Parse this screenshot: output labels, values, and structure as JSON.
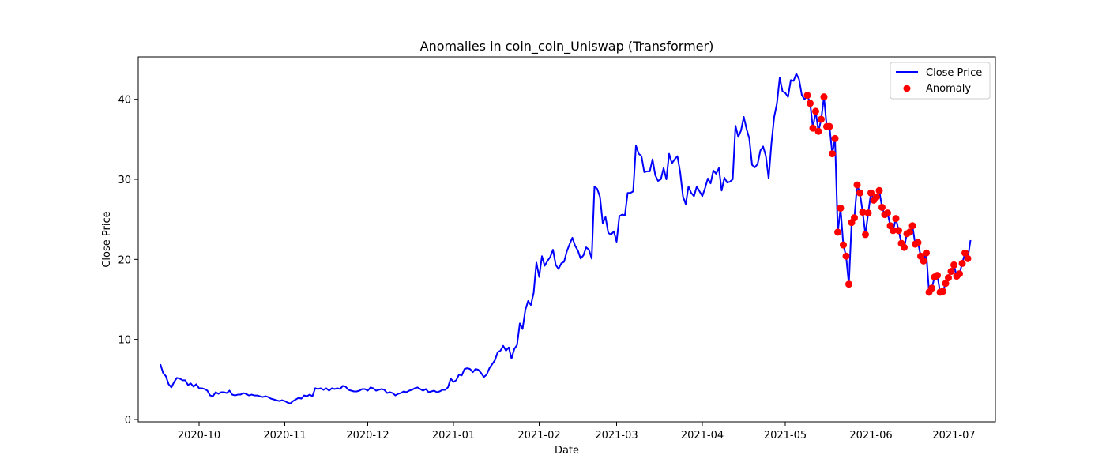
{
  "chart_data": {
    "type": "line",
    "title": "Anomalies in coin_coin_Uniswap (Transformer)",
    "xlabel": "Date",
    "ylabel": "Close Price",
    "x_axis_type": "date",
    "xlim": [
      "2020-09-09",
      "2021-07-16"
    ],
    "ylim": [
      -0.3,
      45.3
    ],
    "x_tick_labels": [
      "2020-10",
      "2020-11",
      "2020-12",
      "2021-01",
      "2021-02",
      "2021-03",
      "2021-04",
      "2021-05",
      "2021-06",
      "2021-07"
    ],
    "x_tick_dates": [
      "2020-10-01",
      "2020-11-01",
      "2020-12-01",
      "2021-01-01",
      "2021-02-01",
      "2021-03-01",
      "2021-04-01",
      "2021-05-01",
      "2021-06-01",
      "2021-07-01"
    ],
    "y_ticks": [
      0,
      10,
      20,
      30,
      40
    ],
    "y_tick_labels": [
      "0",
      "10",
      "20",
      "30",
      "40"
    ],
    "grid": false,
    "legend_position": "top-right",
    "series": [
      {
        "name": "Close Price",
        "kind": "line",
        "color": "#0000ff",
        "start_date": "2020-09-17",
        "values": [
          6.9,
          5.8,
          5.4,
          4.4,
          4.0,
          4.7,
          5.2,
          5.1,
          4.9,
          4.9,
          4.3,
          4.5,
          4.1,
          4.4,
          3.9,
          3.9,
          3.8,
          3.6,
          3.0,
          2.9,
          3.4,
          3.2,
          3.4,
          3.4,
          3.3,
          3.6,
          3.1,
          3.0,
          3.1,
          3.1,
          3.3,
          3.2,
          3.0,
          3.1,
          3.0,
          3.0,
          2.9,
          2.8,
          2.9,
          2.8,
          2.6,
          2.5,
          2.4,
          2.3,
          2.4,
          2.3,
          2.1,
          2.0,
          2.3,
          2.5,
          2.7,
          2.6,
          3.0,
          2.9,
          3.1,
          2.9,
          3.9,
          3.8,
          3.9,
          3.7,
          3.9,
          3.6,
          3.9,
          3.8,
          3.9,
          3.8,
          4.2,
          4.1,
          3.7,
          3.6,
          3.5,
          3.5,
          3.6,
          3.8,
          3.8,
          3.6,
          4.0,
          3.9,
          3.6,
          3.7,
          3.8,
          3.7,
          3.3,
          3.4,
          3.3,
          3.0,
          3.2,
          3.3,
          3.5,
          3.4,
          3.6,
          3.7,
          3.9,
          4.0,
          3.8,
          3.6,
          3.8,
          3.4,
          3.5,
          3.6,
          3.4,
          3.5,
          3.7,
          3.7,
          4.0,
          5.1,
          4.7,
          4.9,
          5.6,
          5.5,
          6.3,
          6.4,
          6.3,
          5.9,
          6.3,
          6.2,
          5.8,
          5.3,
          5.6,
          6.4,
          6.9,
          7.4,
          8.4,
          8.6,
          9.2,
          8.6,
          9.0,
          7.6,
          8.8,
          9.3,
          12.0,
          11.3,
          13.7,
          14.8,
          14.3,
          15.8,
          19.6,
          17.8,
          20.4,
          19.2,
          19.8,
          20.3,
          21.2,
          19.3,
          18.8,
          19.5,
          19.7,
          21.0,
          21.9,
          22.7,
          21.7,
          21.1,
          20.1,
          20.5,
          21.5,
          21.2,
          20.1,
          29.1,
          28.8,
          27.8,
          24.5,
          25.3,
          23.3,
          23.1,
          23.5,
          22.2,
          25.4,
          25.6,
          25.5,
          28.3,
          28.3,
          28.5,
          34.2,
          33.2,
          32.9,
          30.9,
          31.0,
          31.0,
          32.5,
          30.5,
          29.8,
          30.0,
          31.4,
          30.0,
          33.2,
          32.0,
          32.5,
          32.9,
          30.9,
          27.9,
          26.9,
          29.1,
          28.3,
          27.9,
          29.1,
          28.5,
          27.9,
          28.9,
          30.1,
          29.5,
          31.1,
          30.7,
          31.4,
          28.6,
          30.2,
          29.6,
          29.7,
          30.0,
          36.7,
          35.3,
          36.1,
          37.8,
          36.3,
          35.1,
          31.8,
          31.5,
          31.9,
          33.6,
          34.1,
          32.9,
          30.1,
          34.5,
          37.8,
          39.5,
          42.7,
          41.0,
          40.8,
          40.3,
          42.4,
          42.3,
          43.2,
          42.5,
          40.5,
          40.0,
          40.5,
          39.5,
          36.4,
          38.5,
          36.0,
          37.5,
          40.3,
          36.6,
          36.6,
          33.2,
          35.1,
          23.4,
          26.4,
          21.8,
          20.4,
          16.9,
          24.6,
          25.2,
          29.3,
          28.3,
          25.9,
          23.1,
          25.8,
          28.3,
          27.4,
          27.8,
          28.6,
          26.5,
          25.6,
          25.8,
          24.2,
          23.6,
          25.1,
          23.6,
          22.0,
          21.5,
          23.2,
          23.4,
          24.2,
          21.9,
          22.1,
          20.4,
          19.8,
          20.8,
          15.9,
          16.4,
          17.8,
          18.0,
          15.9,
          16.0,
          17.0,
          17.7,
          18.5,
          19.3,
          17.9,
          18.2,
          19.5,
          20.8,
          20.1,
          22.4
        ]
      },
      {
        "name": "Anomaly",
        "kind": "scatter",
        "color": "#ff0000",
        "points": [
          [
            "2021-05-09",
            40.5
          ],
          [
            "2021-05-10",
            39.5
          ],
          [
            "2021-05-11",
            36.4
          ],
          [
            "2021-05-12",
            38.5
          ],
          [
            "2021-05-13",
            36.0
          ],
          [
            "2021-05-14",
            37.5
          ],
          [
            "2021-05-15",
            40.3
          ],
          [
            "2021-05-16",
            36.6
          ],
          [
            "2021-05-17",
            36.6
          ],
          [
            "2021-05-18",
            33.2
          ],
          [
            "2021-05-19",
            35.1
          ],
          [
            "2021-05-20",
            23.4
          ],
          [
            "2021-05-21",
            26.4
          ],
          [
            "2021-05-22",
            21.8
          ],
          [
            "2021-05-23",
            20.4
          ],
          [
            "2021-05-24",
            16.9
          ],
          [
            "2021-05-25",
            24.6
          ],
          [
            "2021-05-26",
            25.2
          ],
          [
            "2021-05-27",
            29.3
          ],
          [
            "2021-05-28",
            28.3
          ],
          [
            "2021-05-29",
            25.9
          ],
          [
            "2021-05-30",
            23.1
          ],
          [
            "2021-05-31",
            25.8
          ],
          [
            "2021-06-01",
            28.3
          ],
          [
            "2021-06-02",
            27.4
          ],
          [
            "2021-06-03",
            27.8
          ],
          [
            "2021-06-04",
            28.6
          ],
          [
            "2021-06-05",
            26.5
          ],
          [
            "2021-06-06",
            25.6
          ],
          [
            "2021-06-07",
            25.8
          ],
          [
            "2021-06-08",
            24.2
          ],
          [
            "2021-06-09",
            23.6
          ],
          [
            "2021-06-10",
            25.1
          ],
          [
            "2021-06-11",
            23.6
          ],
          [
            "2021-06-12",
            22.0
          ],
          [
            "2021-06-13",
            21.5
          ],
          [
            "2021-06-14",
            23.2
          ],
          [
            "2021-06-15",
            23.4
          ],
          [
            "2021-06-16",
            24.2
          ],
          [
            "2021-06-17",
            21.9
          ],
          [
            "2021-06-18",
            22.1
          ],
          [
            "2021-06-19",
            20.4
          ],
          [
            "2021-06-20",
            19.8
          ],
          [
            "2021-06-21",
            20.8
          ],
          [
            "2021-06-22",
            15.9
          ],
          [
            "2021-06-23",
            16.4
          ],
          [
            "2021-06-24",
            17.8
          ],
          [
            "2021-06-25",
            18.0
          ],
          [
            "2021-06-26",
            15.9
          ],
          [
            "2021-06-27",
            16.0
          ],
          [
            "2021-06-28",
            17.0
          ],
          [
            "2021-06-29",
            17.7
          ],
          [
            "2021-06-30",
            18.5
          ],
          [
            "2021-07-01",
            19.3
          ],
          [
            "2021-07-02",
            17.9
          ],
          [
            "2021-07-03",
            18.2
          ],
          [
            "2021-07-04",
            19.5
          ],
          [
            "2021-07-05",
            20.8
          ],
          [
            "2021-07-06",
            20.1
          ]
        ]
      }
    ]
  }
}
